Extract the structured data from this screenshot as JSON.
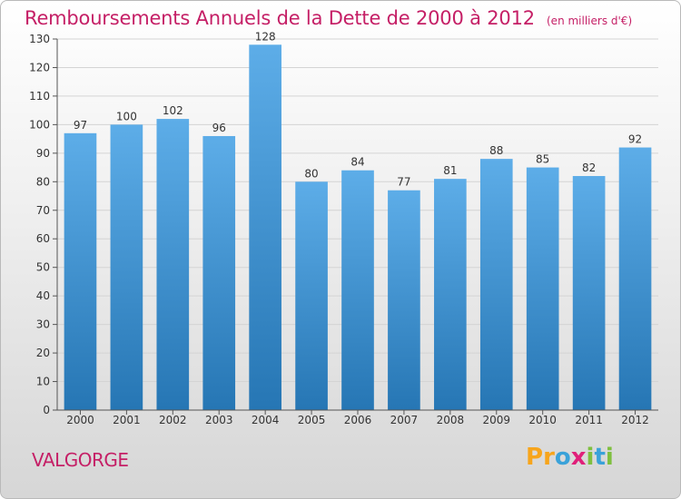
{
  "title": "Remboursements Annuels de la Dette de 2000 à 2012",
  "unit_label": "(en milliers d'€)",
  "commune": "VALGORGE",
  "logo": {
    "letters": [
      "P",
      "r",
      "o",
      "x",
      "i",
      "t",
      "i"
    ],
    "colors": [
      "#f7a51c",
      "#f7a51c",
      "#3aa2d9",
      "#e0207a",
      "#7fbf3f",
      "#3aa2d9",
      "#7fbf3f"
    ]
  },
  "colors": {
    "bar_top": "#5dade8",
    "bar_bottom": "#2676b4",
    "title": "#c51f66"
  },
  "chart_data": {
    "type": "bar",
    "categories": [
      "2000",
      "2001",
      "2002",
      "2003",
      "2004",
      "2005",
      "2006",
      "2007",
      "2008",
      "2009",
      "2010",
      "2011",
      "2012"
    ],
    "values": [
      97,
      100,
      102,
      96,
      128,
      80,
      84,
      77,
      81,
      88,
      85,
      82,
      92
    ],
    "title": "Remboursements Annuels de la Dette de 2000 à 2012",
    "ylim": [
      0,
      130
    ],
    "yticks": [
      0,
      10,
      20,
      30,
      40,
      50,
      60,
      70,
      80,
      90,
      100,
      110,
      120,
      130
    ],
    "grid": true,
    "data_labels": true
  }
}
